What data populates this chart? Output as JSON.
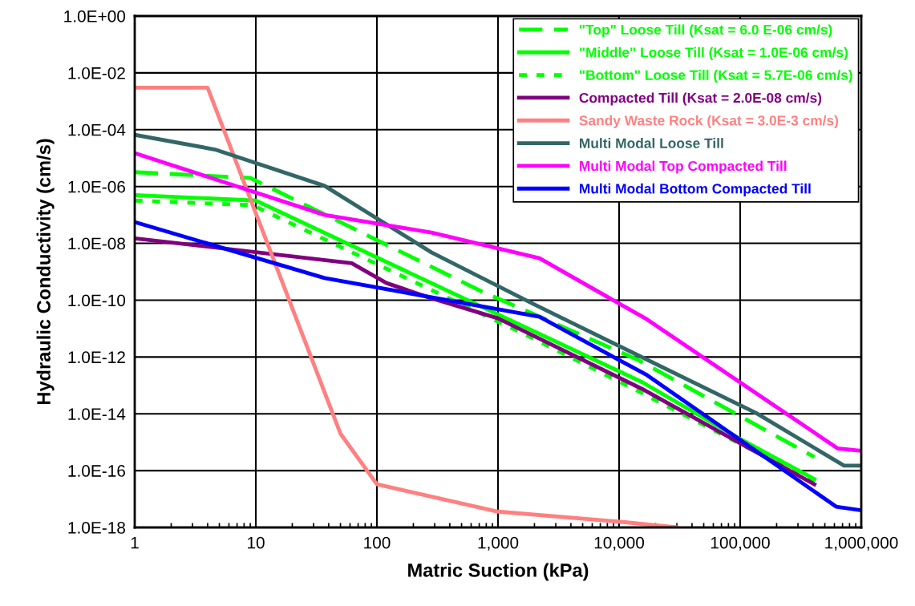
{
  "chart_data": {
    "type": "line",
    "xlabel": "Matric Suction (kPa)",
    "ylabel": "Hydraulic Conductivity (cm/s)",
    "log": "xy",
    "grid": true,
    "legend": "top right",
    "marker": "none",
    "xlim": [
      1,
      1000000
    ],
    "ylim": [
      1e-18,
      1
    ],
    "xticks": [
      {
        "value": 1,
        "label": "1"
      },
      {
        "value": 10,
        "label": "10"
      },
      {
        "value": 100,
        "label": "100"
      },
      {
        "value": 1000,
        "label": "1,000"
      },
      {
        "value": 10000,
        "label": "10,000"
      },
      {
        "value": 100000,
        "label": "100,000"
      },
      {
        "value": 1000000,
        "label": "1,000,000"
      }
    ],
    "yticks": [
      {
        "value": 1e-18,
        "label": "1.0E-18"
      },
      {
        "value": 1e-16,
        "label": "1.0E-16"
      },
      {
        "value": 1e-14,
        "label": "1.0E-14"
      },
      {
        "value": 1e-12,
        "label": "1.0E-12"
      },
      {
        "value": 1e-10,
        "label": "1.0E-10"
      },
      {
        "value": 1e-08,
        "label": "1.0E-08"
      },
      {
        "value": 1e-06,
        "label": "1.0E-06"
      },
      {
        "value": 0.0001,
        "label": "1.0E-04"
      },
      {
        "value": 0.01,
        "label": "1.0E-02"
      },
      {
        "value": 1,
        "label": "1.0E+00"
      }
    ],
    "series": [
      {
        "name": "\"Top\" Loose Till (Ksat = 6.0 E-06 cm/s)",
        "color": "#00ff00",
        "line_style": "dashed",
        "x": [
          1,
          9,
          720,
          14000,
          410000
        ],
        "values": [
          3.2e-06,
          2e-06,
          2.1e-10,
          8.3e-13,
          3e-16
        ]
      },
      {
        "name": "\"Middle\" Loose Till (Ksat = 1.0E-06 cm/s)",
        "color": "#00ff00",
        "line_style": "solid",
        "x": [
          1,
          10,
          15500,
          100000,
          410000
        ],
        "values": [
          5e-07,
          3.2e-07,
          1.3e-13,
          1.3e-15,
          5e-17
        ]
      },
      {
        "name": "\"Bottom\" Loose Till (Ksat = 5.7E-06 cm/s)",
        "color": "#00ff00",
        "line_style": "dotted",
        "x": [
          1,
          9.4,
          1700,
          14000,
          410000
        ],
        "values": [
          3.2e-07,
          2.2e-07,
          6e-12,
          6.6e-14,
          4e-17
        ]
      },
      {
        "name": "Compacted Till (Ksat = 2.0E-08 cm/s)",
        "color": "#800080",
        "line_style": "solid",
        "x": [
          1,
          62,
          120,
          260,
          1000,
          15500,
          410000
        ],
        "values": [
          1.5e-08,
          2e-09,
          4e-10,
          1.3e-10,
          2.3e-11,
          7.5e-14,
          3.3e-17
        ]
      },
      {
        "name": "Sandy Waste Rock (Ksat = 3.0E-3 cm/s)",
        "color": "#ff8080",
        "line_style": "solid",
        "x": [
          1,
          4,
          50,
          100,
          1000,
          10000,
          30000
        ],
        "values": [
          0.003,
          0.003,
          2e-15,
          3.3e-17,
          3.6e-18,
          1.6e-18,
          1e-18
        ]
      },
      {
        "name": "Multi Modal Loose Till",
        "color": "#336666",
        "line_style": "solid",
        "x": [
          1,
          4.6,
          37,
          282,
          2000,
          135000,
          720000,
          1000000
        ],
        "values": [
          6.6e-05,
          2e-05,
          1.05e-06,
          4.8e-09,
          7e-11,
          1.07e-14,
          1.5e-16,
          1.5e-16
        ]
      },
      {
        "name": "Multi Modal Top Compacted Till",
        "color": "#ff00ff",
        "line_style": "solid",
        "x": [
          1,
          37,
          282,
          2200,
          17000,
          640000,
          1000000
        ],
        "values": [
          1.5e-05,
          1e-07,
          2.4e-08,
          3e-09,
          2.1e-11,
          6e-16,
          5e-16
        ]
      },
      {
        "name": "Multi Modal Bottom Compacted Till",
        "color": "#0000ff",
        "line_style": "solid",
        "x": [
          1,
          37,
          2200,
          17000,
          620000,
          1000000
        ],
        "values": [
          5.6e-08,
          6e-10,
          2.6e-11,
          2.3e-13,
          5.4e-18,
          4e-18
        ]
      }
    ]
  }
}
